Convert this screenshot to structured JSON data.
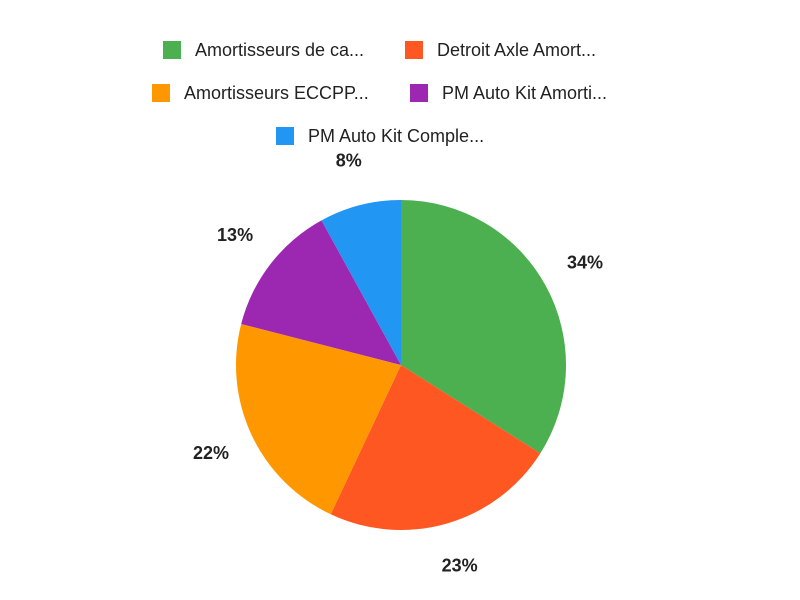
{
  "chart_data": {
    "type": "pie",
    "categories": [
      "Amortisseurs de ca...",
      "Detroit Axle Amort...",
      "Amortisseurs ECCPP...",
      "PM Auto Kit Amorti...",
      "PM Auto Kit Comple..."
    ],
    "values": [
      34,
      23,
      22,
      13,
      8
    ],
    "value_labels": [
      "34%",
      "23%",
      "22%",
      "13%",
      "8%"
    ],
    "colors": [
      "#4caf50",
      "#ff5722",
      "#ff9800",
      "#9c27b0",
      "#2196f3"
    ],
    "legend": "top"
  }
}
